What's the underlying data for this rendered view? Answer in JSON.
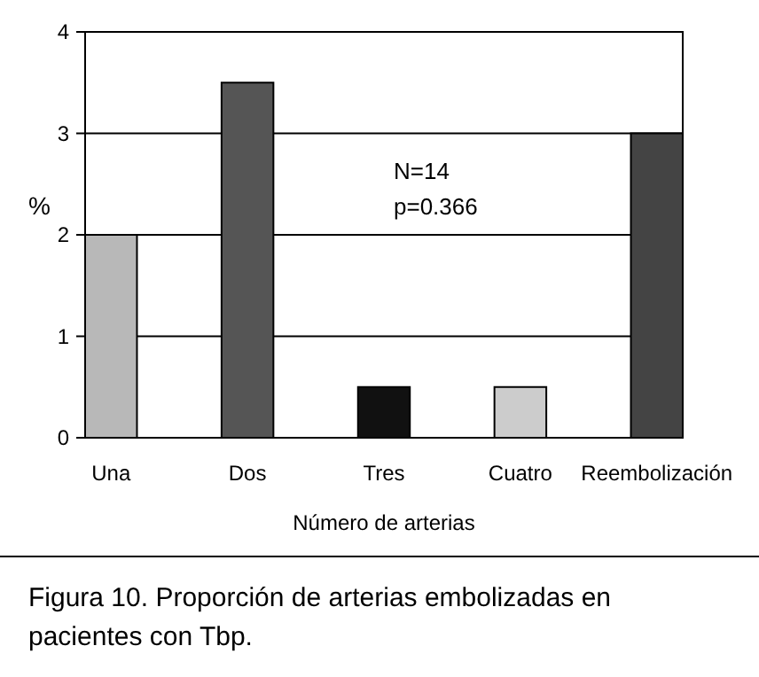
{
  "chart_data": {
    "type": "bar",
    "xlabel": "Número de arterias",
    "ylabel": "%",
    "categories": [
      "Una",
      "Dos",
      "Tres",
      "Cuatro",
      "Reembolización"
    ],
    "values": [
      2,
      3.5,
      0.5,
      0.5,
      3
    ],
    "colors": [
      "#b8b8b8",
      "#555555",
      "#111111",
      "#cccccc",
      "#444444"
    ],
    "ylim": [
      0,
      4
    ],
    "yticks": [
      0,
      1,
      2,
      3,
      4
    ],
    "grid": "y",
    "annotations": [
      "N=14",
      "p=0.366",
      "Figura 10. Proporción de arterias embolizadas en pacientes con Tbp."
    ]
  }
}
